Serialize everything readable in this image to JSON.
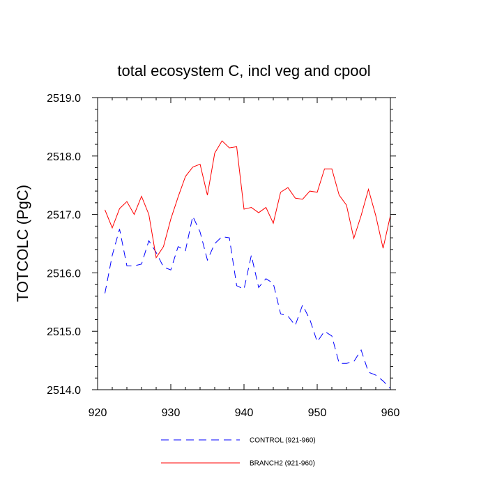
{
  "chart_data": {
    "type": "line",
    "title": "total ecosystem C, incl veg and cpool",
    "xlabel": "",
    "ylabel": "TOTCOLC  (PgC)",
    "xlim": [
      920,
      960
    ],
    "ylim": [
      2514.0,
      2519.0
    ],
    "xticks": [
      920,
      930,
      940,
      950,
      960
    ],
    "xtick_labels": [
      "920",
      "930",
      "940",
      "950",
      "960"
    ],
    "yticks": [
      2514.0,
      2515.0,
      2516.0,
      2517.0,
      2518.0,
      2519.0
    ],
    "ytick_labels": [
      "2514.0",
      "2515.0",
      "2516.0",
      "2517.0",
      "2518.0",
      "2519.0"
    ],
    "x": [
      921,
      922,
      923,
      924,
      925,
      926,
      927,
      928,
      929,
      930,
      931,
      932,
      933,
      934,
      935,
      936,
      937,
      938,
      939,
      940,
      941,
      942,
      943,
      944,
      945,
      946,
      947,
      948,
      949,
      950,
      951,
      952,
      953,
      954,
      955,
      956,
      957,
      958,
      959,
      960
    ],
    "series": [
      {
        "name": "CONTROL (921-960)",
        "color": "#0000ff",
        "dash": "dashed",
        "values": [
          2515.65,
          2516.3,
          2516.75,
          2516.12,
          2516.12,
          2516.15,
          2516.55,
          2516.35,
          2516.1,
          2516.05,
          2516.45,
          2516.38,
          2516.97,
          2516.7,
          2516.22,
          2516.5,
          2516.62,
          2516.6,
          2515.78,
          2515.72,
          2516.3,
          2515.75,
          2515.9,
          2515.82,
          2515.3,
          2515.26,
          2515.1,
          2515.45,
          2515.2,
          2514.82,
          2515.0,
          2514.92,
          2514.45,
          2514.45,
          2514.48,
          2514.68,
          2514.3,
          2514.25,
          2514.15,
          2514.02
        ]
      },
      {
        "name": "BRANCH2 (921-960)",
        "color": "#ff0000",
        "dash": "solid",
        "values": [
          2517.08,
          2516.77,
          2517.1,
          2517.22,
          2517.0,
          2517.31,
          2517.0,
          2516.26,
          2516.45,
          2516.92,
          2517.3,
          2517.65,
          2517.81,
          2517.86,
          2517.33,
          2518.05,
          2518.26,
          2518.14,
          2518.16,
          2517.09,
          2517.12,
          2517.03,
          2517.12,
          2516.85,
          2517.38,
          2517.46,
          2517.28,
          2517.26,
          2517.4,
          2517.38,
          2517.78,
          2517.78,
          2517.33,
          2517.16,
          2516.59,
          2516.98,
          2517.43,
          2516.98,
          2516.42,
          2516.98
        ]
      }
    ],
    "legend": "bottom"
  }
}
